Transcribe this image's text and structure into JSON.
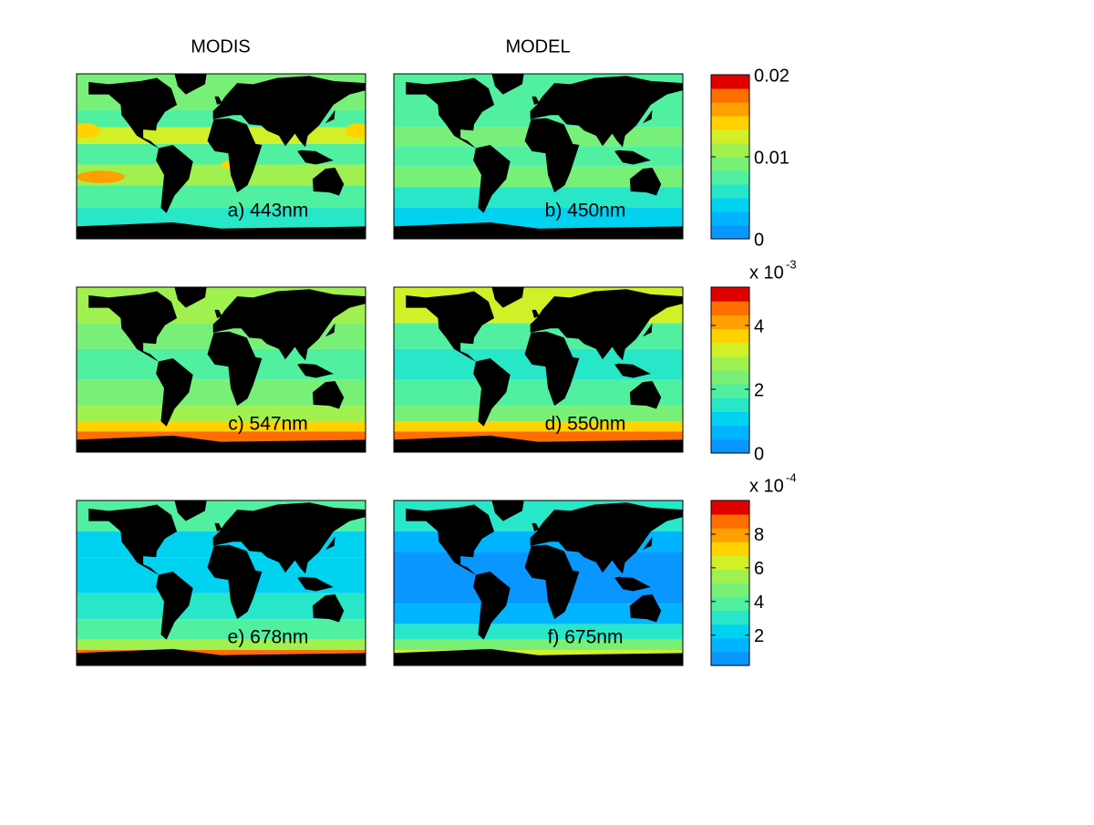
{
  "columns": [
    "MODIS",
    "MODEL"
  ],
  "panels": [
    "a) 443nm",
    "b) 450nm",
    "c) 547nm",
    "d) 550nm",
    "e) 678nm",
    "f) 675nm"
  ],
  "colorbars": [
    {
      "lim": [
        0,
        0.02
      ],
      "ticks": [
        0,
        0.01,
        0.02
      ],
      "colors": [
        "#0a96ff",
        "#00b4ff",
        "#00d2f0",
        "#28e6c8",
        "#50f0a0",
        "#78f078",
        "#a0f050",
        "#d2f028",
        "#ffd200",
        "#ffa000",
        "#ff6e00",
        "#e00000"
      ]
    },
    {
      "lim": [
        0,
        5.2
      ],
      "ticks": [
        0,
        2,
        4
      ],
      "multiplier": "x 10",
      "exponent": "-3",
      "colors": [
        "#0a96ff",
        "#00b4ff",
        "#00d2f0",
        "#28e6c8",
        "#50f0a0",
        "#78f078",
        "#a0f050",
        "#d2f028",
        "#ffd200",
        "#ffa000",
        "#ff6e00",
        "#e00000"
      ]
    },
    {
      "lim": [
        0.2,
        10
      ],
      "ticks": [
        2,
        4,
        6,
        8
      ],
      "multiplier": "x 10",
      "exponent": "-4",
      "colors": [
        "#0a96ff",
        "#00b4ff",
        "#00d2f0",
        "#28e6c8",
        "#50f0a0",
        "#78f078",
        "#a0f050",
        "#d2f028",
        "#ffd200",
        "#ffa000",
        "#ff6e00",
        "#e00000"
      ]
    }
  ]
}
